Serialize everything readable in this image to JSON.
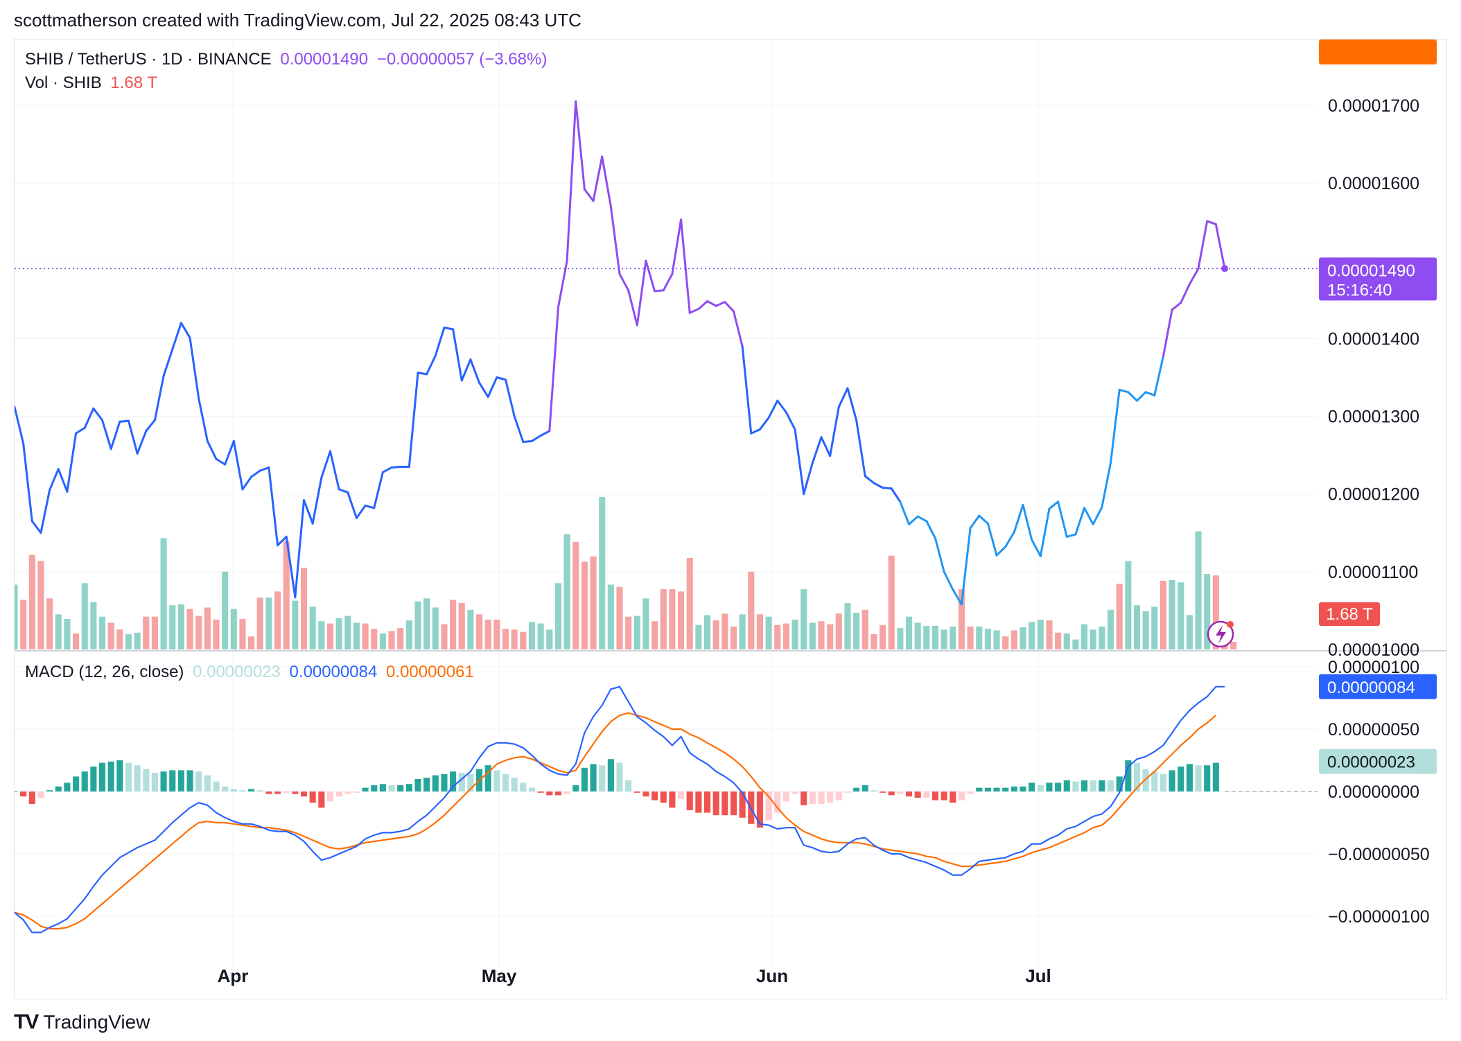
{
  "header": {
    "text": "scottmatherson created with TradingView.com, Jul 22, 2025 08:43 UTC"
  },
  "legend_main": {
    "symbol": "SHIB / TetherUS · 1D · BINANCE",
    "price": "0.00001490",
    "change": "−0.00000057 (−3.68%)",
    "vol_label": "Vol · SHIB",
    "vol_value": "1.68 T"
  },
  "legend_macd": {
    "label": "MACD (12, 26, close)",
    "hist": "0.00000023",
    "macd": "0.00000084",
    "signal": "0.00000061"
  },
  "price_badge": {
    "price": "0.00001490",
    "countdown": "15:16:40"
  },
  "vol_badge": "1.68 T",
  "macd_badges": {
    "macd": "0.00000084",
    "signal": "0.00000061",
    "hist": "0.00000023"
  },
  "price_axis_ticks": [
    "0.00001700",
    "0.00001600",
    "0.00001400",
    "0.00001300",
    "0.00001200",
    "0.00001100",
    "0.00001000"
  ],
  "macd_axis_ticks": [
    "0.00000100",
    "0.00000050",
    "0.00000000",
    "−0.00000050",
    "−0.00000100"
  ],
  "time_axis": [
    "Apr",
    "May",
    "Jun",
    "Jul"
  ],
  "footer": {
    "brand": "TradingView",
    "logo": "TV"
  },
  "colors": {
    "price_line": "#2962ff",
    "price_line_top": "#9c27b0",
    "price_badge": "#8f4cf0",
    "vol_up": "#8fd3c8",
    "vol_down": "#f5a3a3",
    "macd_line": "#2962ff",
    "signal_line": "#ff6d00",
    "hist_up_strong": "#26a69a",
    "hist_up_weak": "#b2dfdb",
    "hist_down_strong": "#ef5350",
    "hist_down_weak": "#ffcdd2",
    "vol_badge": "#ef5350"
  },
  "chart_data": [
    {
      "type": "line",
      "title": "SHIB / TetherUS · 1D · BINANCE",
      "ylim": [
        1e-05,
        1.71e-05
      ],
      "x_start": "2025-03-01",
      "x_end": "2025-07-22",
      "series": [
        {
          "name": "SHIB / TetherUS",
          "values": [
            1.312,
            1.265,
            1.165,
            1.15,
            1.205,
            1.232,
            1.203,
            1.278,
            1.285,
            1.31,
            1.295,
            1.258,
            1.293,
            1.294,
            1.252,
            1.281,
            1.295,
            1.352,
            1.386,
            1.42,
            1.401,
            1.323,
            1.268,
            1.245,
            1.238,
            1.268,
            1.206,
            1.222,
            1.23,
            1.234,
            1.134,
            1.145,
            1.067,
            1.192,
            1.162,
            1.221,
            1.255,
            1.206,
            1.202,
            1.169,
            1.185,
            1.182,
            1.228,
            1.234,
            1.235,
            1.235,
            1.356,
            1.354,
            1.378,
            1.414,
            1.412,
            1.346,
            1.373,
            1.343,
            1.325,
            1.35,
            1.347,
            1.3,
            1.267,
            1.268,
            1.275,
            1.281,
            1.44,
            1.5,
            1.705,
            1.592,
            1.577,
            1.634,
            1.57,
            1.483,
            1.462,
            1.417,
            1.5,
            1.461,
            1.462,
            1.483,
            1.553,
            1.433,
            1.438,
            1.448,
            1.442,
            1.447,
            1.435,
            1.39,
            1.278,
            1.283,
            1.298,
            1.32,
            1.305,
            1.283,
            1.2,
            1.24,
            1.273,
            1.249,
            1.312,
            1.336,
            1.295,
            1.223,
            1.214,
            1.208,
            1.207,
            1.19,
            1.161,
            1.171,
            1.165,
            1.143,
            1.1,
            1.077,
            1.058,
            1.156,
            1.172,
            1.162,
            1.121,
            1.132,
            1.151,
            1.186,
            1.141,
            1.12,
            1.181,
            1.19,
            1.145,
            1.148,
            1.182,
            1.161,
            1.183,
            1.24,
            1.334,
            1.331,
            1.32,
            1.331,
            1.327,
            1.377,
            1.437,
            1.446,
            1.47,
            1.49,
            1.551,
            1.547,
            1.49
          ]
        }
      ],
      "scale_note": "values in units of 1e-5"
    },
    {
      "type": "bar",
      "title": "Vol · SHIB",
      "series": [
        {
          "name": "Vol · SHIB",
          "values": [
            0.85,
            0.65,
            1.24,
            1.16,
            0.67,
            0.46,
            0.4,
            0.21,
            0.87,
            0.62,
            0.43,
            0.35,
            0.26,
            0.2,
            0.22,
            0.43,
            0.43,
            1.46,
            0.58,
            0.59,
            0.53,
            0.44,
            0.55,
            0.39,
            1.02,
            0.53,
            0.4,
            0.17,
            0.68,
            0.68,
            0.76,
            1.42,
            0.64,
            1.07,
            0.56,
            0.37,
            0.34,
            0.41,
            0.44,
            0.35,
            0.34,
            0.27,
            0.21,
            0.24,
            0.28,
            0.38,
            0.63,
            0.67,
            0.55,
            0.33,
            0.65,
            0.61,
            0.52,
            0.46,
            0.39,
            0.39,
            0.27,
            0.26,
            0.23,
            0.36,
            0.34,
            0.26,
            0.87,
            1.51,
            1.41,
            1.15,
            1.22,
            2.0,
            0.85,
            0.82,
            0.43,
            0.44,
            0.67,
            0.37,
            0.79,
            0.79,
            0.76,
            1.2,
            0.32,
            0.45,
            0.38,
            0.47,
            0.3,
            0.46,
            1.02,
            0.46,
            0.43,
            0.32,
            0.34,
            0.39,
            0.79,
            0.35,
            0.37,
            0.33,
            0.47,
            0.61,
            0.48,
            0.52,
            0.2,
            0.32,
            1.23,
            0.28,
            0.43,
            0.35,
            0.31,
            0.31,
            0.26,
            0.3,
            0.79,
            0.3,
            0.3,
            0.27,
            0.25,
            0.17,
            0.25,
            0.29,
            0.36,
            0.39,
            0.38,
            0.22,
            0.21,
            0.13,
            0.33,
            0.26,
            0.3,
            0.52,
            0.86,
            1.16,
            0.58,
            0.5,
            0.56,
            0.9,
            0.91,
            0.88,
            0.45,
            1.55,
            0.99,
            0.97,
            0.28,
            0.1
          ],
          "direction": "udddduuduuudduudduuudddduudddudduduuduuuddudduuuudddudddddduuuuuddduudduuddddduuddduddudduuuddduudddduuuuuuudduuudduuudduuuuuuduuuuduuuuu"
        }
      ],
      "unit": "T",
      "ylim": [
        0,
        2.1
      ]
    },
    {
      "type": "line",
      "title": "MACD (12, 26, close)",
      "ylim": [
        -1.2e-06,
        1.3e-06
      ],
      "series": [
        {
          "name": "MACD",
          "values": [
            -0.97,
            -1.03,
            -1.13,
            -1.13,
            -1.09,
            -1.06,
            -1.02,
            -0.94,
            -0.86,
            -0.76,
            -0.67,
            -0.6,
            -0.53,
            -0.49,
            -0.45,
            -0.42,
            -0.39,
            -0.32,
            -0.25,
            -0.19,
            -0.13,
            -0.09,
            -0.11,
            -0.17,
            -0.21,
            -0.24,
            -0.26,
            -0.26,
            -0.28,
            -0.31,
            -0.32,
            -0.32,
            -0.35,
            -0.4,
            -0.48,
            -0.55,
            -0.53,
            -0.5,
            -0.47,
            -0.44,
            -0.38,
            -0.35,
            -0.33,
            -0.33,
            -0.32,
            -0.3,
            -0.24,
            -0.19,
            -0.12,
            -0.05,
            0.04,
            0.1,
            0.16,
            0.27,
            0.36,
            0.39,
            0.39,
            0.38,
            0.35,
            0.29,
            0.22,
            0.17,
            0.14,
            0.13,
            0.22,
            0.47,
            0.6,
            0.69,
            0.82,
            0.84,
            0.72,
            0.6,
            0.55,
            0.49,
            0.44,
            0.37,
            0.44,
            0.31,
            0.26,
            0.22,
            0.16,
            0.12,
            0.07,
            -0.01,
            -0.14,
            -0.26,
            -0.27,
            -0.3,
            -0.29,
            -0.29,
            -0.43,
            -0.45,
            -0.48,
            -0.49,
            -0.48,
            -0.42,
            -0.38,
            -0.37,
            -0.43,
            -0.47,
            -0.5,
            -0.5,
            -0.53,
            -0.55,
            -0.57,
            -0.6,
            -0.63,
            -0.67,
            -0.67,
            -0.62,
            -0.56,
            -0.55,
            -0.54,
            -0.53,
            -0.5,
            -0.48,
            -0.42,
            -0.42,
            -0.38,
            -0.35,
            -0.3,
            -0.28,
            -0.24,
            -0.2,
            -0.18,
            -0.12,
            -0.01,
            0.2,
            0.26,
            0.28,
            0.32,
            0.37,
            0.47,
            0.57,
            0.65,
            0.71,
            0.76,
            0.84,
            0.84
          ]
        },
        {
          "name": "Signal",
          "values": [
            -0.97,
            -0.99,
            -1.03,
            -1.08,
            -1.1,
            -1.1,
            -1.09,
            -1.06,
            -1.02,
            -0.96,
            -0.9,
            -0.84,
            -0.78,
            -0.72,
            -0.66,
            -0.6,
            -0.54,
            -0.48,
            -0.42,
            -0.36,
            -0.3,
            -0.25,
            -0.24,
            -0.25,
            -0.25,
            -0.26,
            -0.27,
            -0.28,
            -0.29,
            -0.29,
            -0.3,
            -0.31,
            -0.33,
            -0.36,
            -0.39,
            -0.42,
            -0.45,
            -0.46,
            -0.45,
            -0.43,
            -0.41,
            -0.4,
            -0.39,
            -0.38,
            -0.37,
            -0.36,
            -0.34,
            -0.3,
            -0.25,
            -0.19,
            -0.12,
            -0.05,
            0.02,
            0.09,
            0.15,
            0.22,
            0.25,
            0.27,
            0.28,
            0.26,
            0.23,
            0.2,
            0.17,
            0.15,
            0.17,
            0.28,
            0.38,
            0.48,
            0.56,
            0.61,
            0.63,
            0.61,
            0.59,
            0.56,
            0.53,
            0.5,
            0.5,
            0.46,
            0.43,
            0.39,
            0.35,
            0.31,
            0.26,
            0.2,
            0.12,
            0.03,
            -0.04,
            -0.13,
            -0.21,
            -0.27,
            -0.32,
            -0.35,
            -0.38,
            -0.4,
            -0.41,
            -0.41,
            -0.41,
            -0.42,
            -0.44,
            -0.46,
            -0.47,
            -0.48,
            -0.49,
            -0.5,
            -0.52,
            -0.53,
            -0.56,
            -0.58,
            -0.6,
            -0.6,
            -0.59,
            -0.58,
            -0.57,
            -0.56,
            -0.54,
            -0.52,
            -0.49,
            -0.47,
            -0.45,
            -0.42,
            -0.39,
            -0.36,
            -0.33,
            -0.29,
            -0.27,
            -0.21,
            -0.13,
            -0.05,
            0.03,
            0.1,
            0.16,
            0.23,
            0.3,
            0.37,
            0.43,
            0.5,
            0.55,
            0.61
          ]
        }
      ],
      "scale_note": "values in units of 1e-6",
      "histogram_note": "histogram = MACD − Signal; strong/weak color by increasing/decreasing magnitude"
    }
  ]
}
